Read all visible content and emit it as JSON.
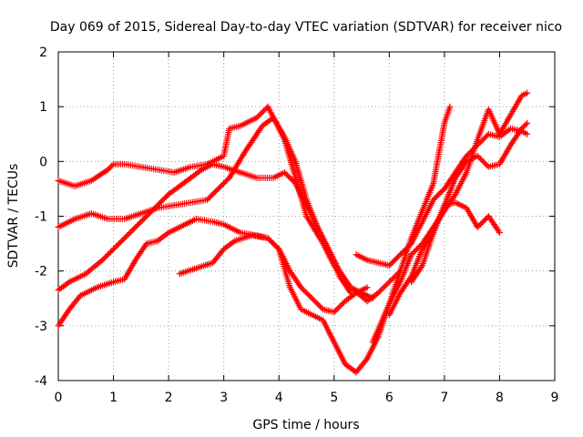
{
  "chart_data": {
    "type": "scatter",
    "title": "Day 069 of 2015, Sidereal Day-to-day VTEC variation (SDTVAR) for receiver nico",
    "xlabel": "GPS time / hours",
    "ylabel": "SDTVAR / TECUs",
    "xlim": [
      0,
      9
    ],
    "ylim": [
      -4,
      2
    ],
    "xticks": [
      "0",
      "1",
      "2",
      "3",
      "4",
      "5",
      "6",
      "7",
      "8",
      "9"
    ],
    "yticks": [
      "-4",
      "-3",
      "-2",
      "-1",
      "0",
      "1",
      "2"
    ],
    "grid": true,
    "legend": "none",
    "marker": "+",
    "color": "#ff0000",
    "series": [
      {
        "x": [
          0.0,
          0.3,
          0.6,
          0.9,
          1.0,
          1.2,
          1.5,
          1.8,
          2.1,
          2.4,
          2.7,
          3.0,
          3.1,
          3.3,
          3.6,
          3.8,
          3.9,
          4.1,
          4.3,
          4.5,
          4.8,
          5.0,
          5.3,
          5.5,
          5.7
        ],
        "y": [
          -0.35,
          -0.45,
          -0.35,
          -0.15,
          -0.05,
          -0.05,
          -0.1,
          -0.15,
          -0.2,
          -0.1,
          -0.05,
          0.1,
          0.6,
          0.65,
          0.8,
          1.0,
          0.8,
          0.4,
          -0.3,
          -1.0,
          -1.5,
          -1.9,
          -2.3,
          -2.4,
          -2.5
        ]
      },
      {
        "x": [
          0.0,
          0.3,
          0.6,
          0.9,
          1.2,
          1.5,
          1.8,
          2.1,
          2.4,
          2.7,
          2.9,
          3.1,
          3.4,
          3.7,
          3.9,
          4.1,
          4.3,
          4.5,
          4.7,
          4.9,
          5.1,
          5.3,
          5.6,
          5.8,
          6.0,
          6.2
        ],
        "y": [
          -1.2,
          -1.05,
          -0.95,
          -1.05,
          -1.05,
          -0.95,
          -0.85,
          -0.8,
          -0.75,
          -0.7,
          -0.5,
          -0.3,
          0.2,
          0.65,
          0.8,
          0.45,
          0.0,
          -0.7,
          -1.2,
          -1.6,
          -2.0,
          -2.3,
          -2.55,
          -2.4,
          -2.2,
          -2.0
        ]
      },
      {
        "x": [
          0.0,
          0.2,
          0.5,
          0.8,
          1.0,
          1.2,
          1.4,
          1.6,
          1.8,
          2.0,
          2.2,
          2.4,
          2.6,
          2.8,
          3.0,
          3.3,
          3.6,
          3.9,
          4.1,
          4.3,
          4.6,
          4.9,
          5.1,
          5.3
        ],
        "y": [
          -2.35,
          -2.2,
          -2.05,
          -1.8,
          -1.6,
          -1.4,
          -1.2,
          -1.0,
          -0.8,
          -0.6,
          -0.45,
          -0.3,
          -0.15,
          -0.05,
          -0.1,
          -0.2,
          -0.3,
          -0.3,
          -0.2,
          -0.4,
          -1.0,
          -1.6,
          -2.1,
          -2.4
        ]
      },
      {
        "x": [
          0.0,
          0.2,
          0.4,
          0.7,
          1.0,
          1.2,
          1.4,
          1.6,
          1.8,
          2.0,
          2.2,
          2.5,
          2.8,
          3.0,
          3.3,
          3.6,
          3.8,
          4.0,
          4.2,
          4.4,
          4.6,
          4.8,
          5.0,
          5.2,
          5.4,
          5.6
        ],
        "y": [
          -3.0,
          -2.7,
          -2.45,
          -2.3,
          -2.2,
          -2.15,
          -1.8,
          -1.5,
          -1.45,
          -1.3,
          -1.2,
          -1.05,
          -1.1,
          -1.15,
          -1.3,
          -1.35,
          -1.4,
          -1.6,
          -2.0,
          -2.3,
          -2.5,
          -2.7,
          -2.75,
          -2.55,
          -2.4,
          -2.3
        ]
      },
      {
        "x": [
          2.2,
          2.5,
          2.8,
          3.0,
          3.2,
          3.5,
          3.8,
          4.0,
          4.2,
          4.4,
          4.6,
          4.8,
          5.0,
          5.2,
          5.4,
          5.6,
          5.8,
          6.0,
          6.2,
          6.4,
          6.6,
          6.8,
          7.0,
          7.1
        ],
        "y": [
          -2.05,
          -1.95,
          -1.85,
          -1.6,
          -1.45,
          -1.35,
          -1.4,
          -1.6,
          -2.3,
          -2.7,
          -2.8,
          -2.9,
          -3.3,
          -3.7,
          -3.85,
          -3.6,
          -3.2,
          -2.6,
          -2.0,
          -1.4,
          -0.9,
          -0.4,
          0.7,
          1.0
        ]
      },
      {
        "x": [
          5.4,
          5.6,
          5.8,
          6.0,
          6.2,
          6.4,
          6.6,
          6.8,
          7.0,
          7.2,
          7.4,
          7.6,
          7.8,
          8.0,
          8.2,
          8.4,
          8.5
        ],
        "y": [
          -1.7,
          -1.8,
          -1.85,
          -1.9,
          -1.7,
          -1.5,
          -1.1,
          -0.7,
          -0.5,
          -0.2,
          0.1,
          0.3,
          0.5,
          0.45,
          0.6,
          0.55,
          0.5
        ]
      },
      {
        "x": [
          5.7,
          6.0,
          6.2,
          6.4,
          6.6,
          6.8,
          7.0,
          7.2,
          7.4,
          7.6,
          7.8,
          8.0,
          8.2,
          8.4,
          8.5
        ],
        "y": [
          -3.3,
          -2.6,
          -2.2,
          -1.7,
          -1.5,
          -1.2,
          -0.9,
          -0.6,
          -0.2,
          0.4,
          0.95,
          0.5,
          0.85,
          1.2,
          1.25
        ]
      },
      {
        "x": [
          6.0,
          6.2,
          6.4,
          6.6,
          6.8,
          7.0,
          7.2,
          7.4,
          7.6,
          7.8,
          8.0,
          8.2,
          8.4,
          8.5
        ],
        "y": [
          -2.8,
          -2.4,
          -2.1,
          -1.6,
          -1.3,
          -0.8,
          -0.3,
          0.0,
          0.1,
          -0.1,
          -0.05,
          0.3,
          0.6,
          0.7
        ]
      },
      {
        "x": [
          6.4,
          6.6,
          6.8,
          7.0,
          7.2,
          7.4,
          7.6,
          7.8,
          8.0
        ],
        "y": [
          -2.2,
          -1.9,
          -1.3,
          -0.8,
          -0.75,
          -0.85,
          -1.2,
          -1.0,
          -1.3
        ]
      }
    ]
  }
}
